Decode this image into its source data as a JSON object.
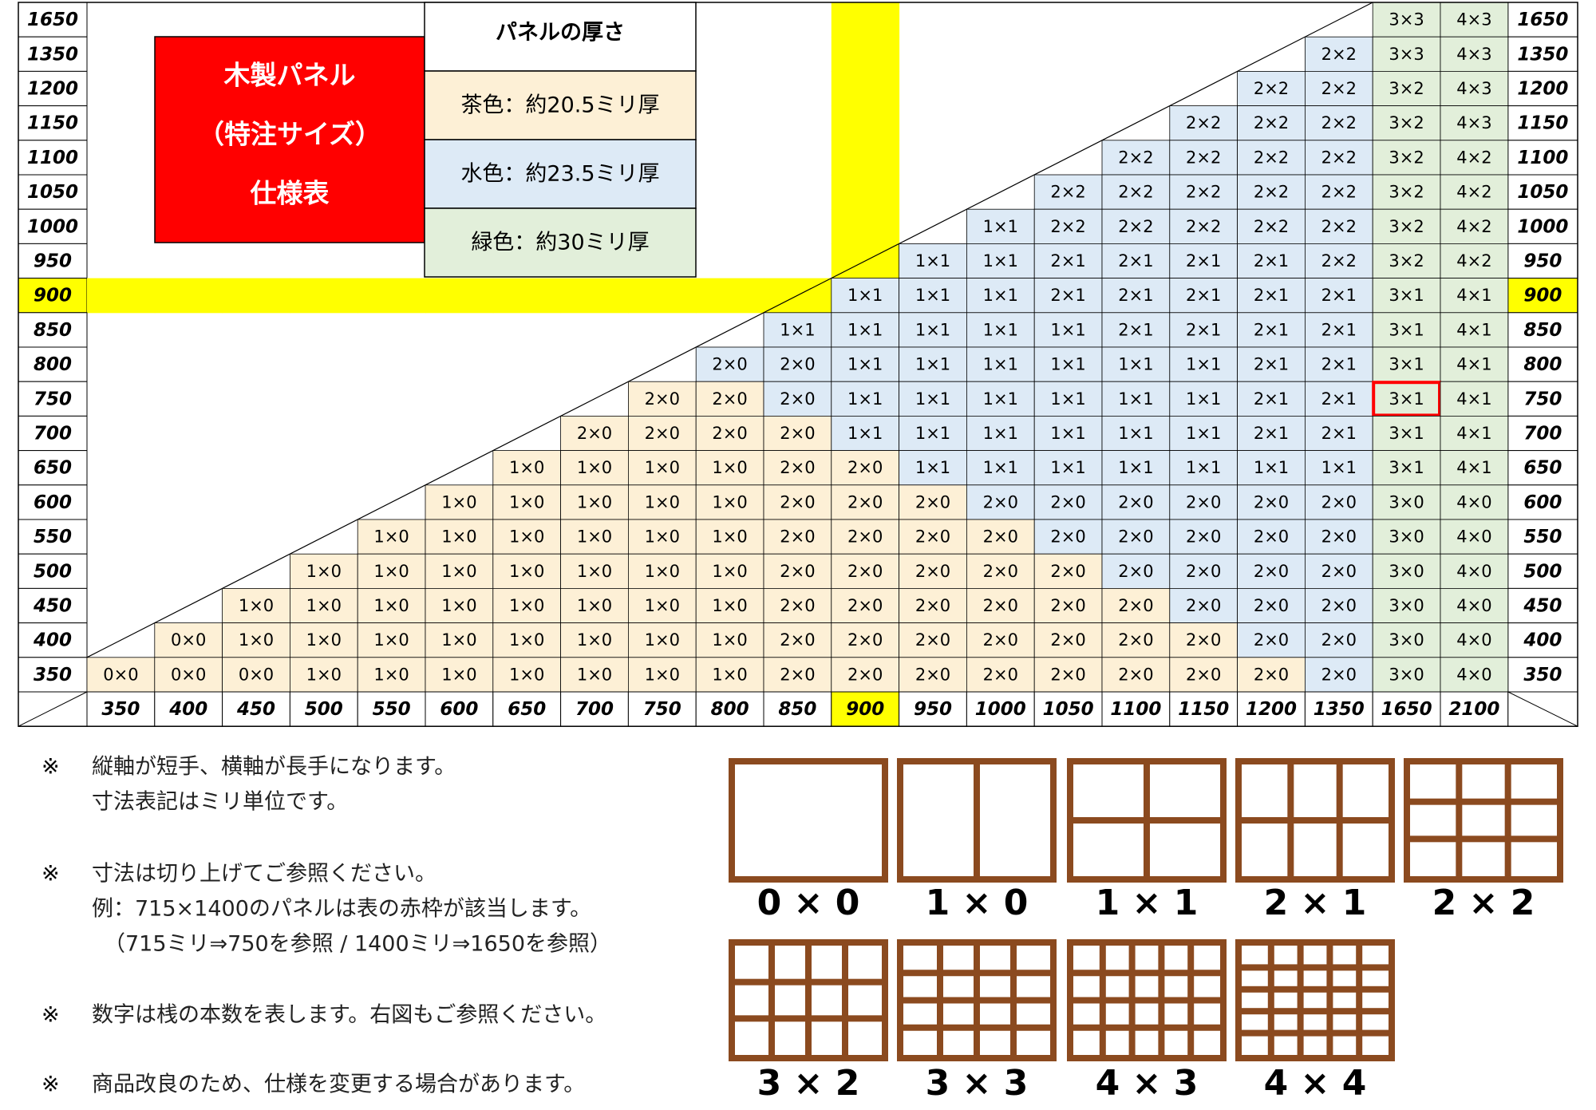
{
  "title_box": [
    "木製パネル",
    "（特注サイズ）",
    "仕様表"
  ],
  "legend": {
    "title": "パネルの厚さ",
    "items": [
      {
        "label": "茶色：約20.5ミリ厚",
        "color": "#fdf0d6"
      },
      {
        "label": "水色：約23.5ミリ厚",
        "color": "#ddeaf6"
      },
      {
        "label": "緑色：約30ミリ厚",
        "color": "#e2efda"
      }
    ]
  },
  "table": {
    "highlight": "900",
    "highlight_color": "#ffff00",
    "frame": {
      "row": "750",
      "column": "1650",
      "color": "#ff0000"
    },
    "columns": [
      "350",
      "400",
      "450",
      "500",
      "550",
      "600",
      "650",
      "700",
      "750",
      "800",
      "850",
      "900",
      "950",
      "1000",
      "1050",
      "1100",
      "1150",
      "1200",
      "1350",
      "1650",
      "2100"
    ],
    "rows": [
      {
        "label": "1650",
        "cells": [
          null,
          null,
          null,
          null,
          null,
          null,
          null,
          null,
          null,
          null,
          null,
          null,
          null,
          null,
          null,
          null,
          null,
          null,
          null,
          "3×3",
          "4×3"
        ],
        "colors": [
          null,
          null,
          null,
          null,
          null,
          null,
          null,
          null,
          null,
          null,
          null,
          null,
          null,
          null,
          null,
          null,
          null,
          null,
          null,
          "#e2efda",
          "#e2efda"
        ]
      },
      {
        "label": "1350",
        "cells": [
          null,
          null,
          null,
          null,
          null,
          null,
          null,
          null,
          null,
          null,
          null,
          null,
          null,
          null,
          null,
          null,
          null,
          null,
          "2×2",
          "3×3",
          "4×3"
        ],
        "colors": [
          null,
          null,
          null,
          null,
          null,
          null,
          null,
          null,
          null,
          null,
          null,
          null,
          null,
          null,
          null,
          null,
          null,
          null,
          "#ddeaf6",
          "#e2efda",
          "#e2efda"
        ]
      },
      {
        "label": "1200",
        "cells": [
          null,
          null,
          null,
          null,
          null,
          null,
          null,
          null,
          null,
          null,
          null,
          null,
          null,
          null,
          null,
          null,
          null,
          "2×2",
          "2×2",
          "3×2",
          "4×3"
        ],
        "colors": [
          null,
          null,
          null,
          null,
          null,
          null,
          null,
          null,
          null,
          null,
          null,
          null,
          null,
          null,
          null,
          null,
          null,
          "#ddeaf6",
          "#ddeaf6",
          "#e2efda",
          "#e2efda"
        ]
      },
      {
        "label": "1150",
        "cells": [
          null,
          null,
          null,
          null,
          null,
          null,
          null,
          null,
          null,
          null,
          null,
          null,
          null,
          null,
          null,
          null,
          "2×2",
          "2×2",
          "2×2",
          "3×2",
          "4×3"
        ],
        "colors": [
          null,
          null,
          null,
          null,
          null,
          null,
          null,
          null,
          null,
          null,
          null,
          null,
          null,
          null,
          null,
          null,
          "#ddeaf6",
          "#ddeaf6",
          "#ddeaf6",
          "#e2efda",
          "#e2efda"
        ]
      },
      {
        "label": "1100",
        "cells": [
          null,
          null,
          null,
          null,
          null,
          null,
          null,
          null,
          null,
          null,
          null,
          null,
          null,
          null,
          null,
          "2×2",
          "2×2",
          "2×2",
          "2×2",
          "3×2",
          "4×2"
        ],
        "colors": [
          null,
          null,
          null,
          null,
          null,
          null,
          null,
          null,
          null,
          null,
          null,
          null,
          null,
          null,
          null,
          "#ddeaf6",
          "#ddeaf6",
          "#ddeaf6",
          "#ddeaf6",
          "#e2efda",
          "#e2efda"
        ]
      },
      {
        "label": "1050",
        "cells": [
          null,
          null,
          null,
          null,
          null,
          null,
          null,
          null,
          null,
          null,
          null,
          null,
          null,
          null,
          "2×2",
          "2×2",
          "2×2",
          "2×2",
          "2×2",
          "3×2",
          "4×2"
        ],
        "colors": [
          null,
          null,
          null,
          null,
          null,
          null,
          null,
          null,
          null,
          null,
          null,
          null,
          null,
          null,
          "#ddeaf6",
          "#ddeaf6",
          "#ddeaf6",
          "#ddeaf6",
          "#ddeaf6",
          "#e2efda",
          "#e2efda"
        ]
      },
      {
        "label": "1000",
        "cells": [
          null,
          null,
          null,
          null,
          null,
          null,
          null,
          null,
          null,
          null,
          null,
          null,
          null,
          "1×1",
          "2×2",
          "2×2",
          "2×2",
          "2×2",
          "2×2",
          "3×2",
          "4×2"
        ],
        "colors": [
          null,
          null,
          null,
          null,
          null,
          null,
          null,
          null,
          null,
          null,
          null,
          null,
          null,
          "#ddeaf6",
          "#ddeaf6",
          "#ddeaf6",
          "#ddeaf6",
          "#ddeaf6",
          "#ddeaf6",
          "#e2efda",
          "#e2efda"
        ]
      },
      {
        "label": "950",
        "cells": [
          null,
          null,
          null,
          null,
          null,
          null,
          null,
          null,
          null,
          null,
          null,
          null,
          "1×1",
          "1×1",
          "2×1",
          "2×1",
          "2×1",
          "2×1",
          "2×2",
          "3×2",
          "4×2"
        ],
        "colors": [
          null,
          null,
          null,
          null,
          null,
          null,
          null,
          null,
          null,
          null,
          null,
          null,
          "#ddeaf6",
          "#ddeaf6",
          "#ddeaf6",
          "#ddeaf6",
          "#ddeaf6",
          "#ddeaf6",
          "#ddeaf6",
          "#e2efda",
          "#e2efda"
        ]
      },
      {
        "label": "900",
        "cells": [
          null,
          null,
          null,
          null,
          null,
          null,
          null,
          null,
          null,
          null,
          null,
          "1×1",
          "1×1",
          "1×1",
          "2×1",
          "2×1",
          "2×1",
          "2×1",
          "2×1",
          "3×1",
          "4×1"
        ],
        "colors": [
          null,
          null,
          null,
          null,
          null,
          null,
          null,
          null,
          null,
          null,
          null,
          "#ddeaf6",
          "#ddeaf6",
          "#ddeaf6",
          "#ddeaf6",
          "#ddeaf6",
          "#ddeaf6",
          "#ddeaf6",
          "#ddeaf6",
          "#e2efda",
          "#e2efda"
        ]
      },
      {
        "label": "850",
        "cells": [
          null,
          null,
          null,
          null,
          null,
          null,
          null,
          null,
          null,
          null,
          "1×1",
          "1×1",
          "1×1",
          "1×1",
          "1×1",
          "2×1",
          "2×1",
          "2×1",
          "2×1",
          "3×1",
          "4×1"
        ],
        "colors": [
          null,
          null,
          null,
          null,
          null,
          null,
          null,
          null,
          null,
          null,
          "#ddeaf6",
          "#ddeaf6",
          "#ddeaf6",
          "#ddeaf6",
          "#ddeaf6",
          "#ddeaf6",
          "#ddeaf6",
          "#ddeaf6",
          "#ddeaf6",
          "#e2efda",
          "#e2efda"
        ]
      },
      {
        "label": "800",
        "cells": [
          null,
          null,
          null,
          null,
          null,
          null,
          null,
          null,
          null,
          "2×0",
          "2×0",
          "1×1",
          "1×1",
          "1×1",
          "1×1",
          "1×1",
          "1×1",
          "2×1",
          "2×1",
          "3×1",
          "4×1"
        ],
        "colors": [
          null,
          null,
          null,
          null,
          null,
          null,
          null,
          null,
          null,
          "#ddeaf6",
          "#ddeaf6",
          "#ddeaf6",
          "#ddeaf6",
          "#ddeaf6",
          "#ddeaf6",
          "#ddeaf6",
          "#ddeaf6",
          "#ddeaf6",
          "#ddeaf6",
          "#e2efda",
          "#e2efda"
        ]
      },
      {
        "label": "750",
        "cells": [
          null,
          null,
          null,
          null,
          null,
          null,
          null,
          null,
          "2×0",
          "2×0",
          "2×0",
          "1×1",
          "1×1",
          "1×1",
          "1×1",
          "1×1",
          "1×1",
          "2×1",
          "2×1",
          "3×1",
          "4×1"
        ],
        "colors": [
          null,
          null,
          null,
          null,
          null,
          null,
          null,
          null,
          "#fdf0d6",
          "#fdf0d6",
          "#ddeaf6",
          "#ddeaf6",
          "#ddeaf6",
          "#ddeaf6",
          "#ddeaf6",
          "#ddeaf6",
          "#ddeaf6",
          "#ddeaf6",
          "#ddeaf6",
          "#e2efda",
          "#e2efda"
        ]
      },
      {
        "label": "700",
        "cells": [
          null,
          null,
          null,
          null,
          null,
          null,
          null,
          "2×0",
          "2×0",
          "2×0",
          "2×0",
          "1×1",
          "1×1",
          "1×1",
          "1×1",
          "1×1",
          "1×1",
          "2×1",
          "2×1",
          "3×1",
          "4×1"
        ],
        "colors": [
          null,
          null,
          null,
          null,
          null,
          null,
          null,
          "#fdf0d6",
          "#fdf0d6",
          "#fdf0d6",
          "#fdf0d6",
          "#ddeaf6",
          "#ddeaf6",
          "#ddeaf6",
          "#ddeaf6",
          "#ddeaf6",
          "#ddeaf6",
          "#ddeaf6",
          "#ddeaf6",
          "#e2efda",
          "#e2efda"
        ]
      },
      {
        "label": "650",
        "cells": [
          null,
          null,
          null,
          null,
          null,
          null,
          "1×0",
          "1×0",
          "1×0",
          "1×0",
          "2×0",
          "2×0",
          "1×1",
          "1×1",
          "1×1",
          "1×1",
          "1×1",
          "1×1",
          "1×1",
          "3×1",
          "4×1"
        ],
        "colors": [
          null,
          null,
          null,
          null,
          null,
          null,
          "#fdf0d6",
          "#fdf0d6",
          "#fdf0d6",
          "#fdf0d6",
          "#fdf0d6",
          "#fdf0d6",
          "#ddeaf6",
          "#ddeaf6",
          "#ddeaf6",
          "#ddeaf6",
          "#ddeaf6",
          "#ddeaf6",
          "#ddeaf6",
          "#e2efda",
          "#e2efda"
        ]
      },
      {
        "label": "600",
        "cells": [
          null,
          null,
          null,
          null,
          null,
          "1×0",
          "1×0",
          "1×0",
          "1×0",
          "1×0",
          "2×0",
          "2×0",
          "2×0",
          "2×0",
          "2×0",
          "2×0",
          "2×0",
          "2×0",
          "2×0",
          "3×0",
          "4×0"
        ],
        "colors": [
          null,
          null,
          null,
          null,
          null,
          "#fdf0d6",
          "#fdf0d6",
          "#fdf0d6",
          "#fdf0d6",
          "#fdf0d6",
          "#fdf0d6",
          "#fdf0d6",
          "#fdf0d6",
          "#ddeaf6",
          "#ddeaf6",
          "#ddeaf6",
          "#ddeaf6",
          "#ddeaf6",
          "#ddeaf6",
          "#e2efda",
          "#e2efda"
        ]
      },
      {
        "label": "550",
        "cells": [
          null,
          null,
          null,
          null,
          "1×0",
          "1×0",
          "1×0",
          "1×0",
          "1×0",
          "1×0",
          "2×0",
          "2×0",
          "2×0",
          "2×0",
          "2×0",
          "2×0",
          "2×0",
          "2×0",
          "2×0",
          "3×0",
          "4×0"
        ],
        "colors": [
          null,
          null,
          null,
          null,
          "#fdf0d6",
          "#fdf0d6",
          "#fdf0d6",
          "#fdf0d6",
          "#fdf0d6",
          "#fdf0d6",
          "#fdf0d6",
          "#fdf0d6",
          "#fdf0d6",
          "#fdf0d6",
          "#ddeaf6",
          "#ddeaf6",
          "#ddeaf6",
          "#ddeaf6",
          "#ddeaf6",
          "#e2efda",
          "#e2efda"
        ]
      },
      {
        "label": "500",
        "cells": [
          null,
          null,
          null,
          "1×0",
          "1×0",
          "1×0",
          "1×0",
          "1×0",
          "1×0",
          "1×0",
          "2×0",
          "2×0",
          "2×0",
          "2×0",
          "2×0",
          "2×0",
          "2×0",
          "2×0",
          "2×0",
          "3×0",
          "4×0"
        ],
        "colors": [
          null,
          null,
          null,
          "#fdf0d6",
          "#fdf0d6",
          "#fdf0d6",
          "#fdf0d6",
          "#fdf0d6",
          "#fdf0d6",
          "#fdf0d6",
          "#fdf0d6",
          "#fdf0d6",
          "#fdf0d6",
          "#fdf0d6",
          "#fdf0d6",
          "#ddeaf6",
          "#ddeaf6",
          "#ddeaf6",
          "#ddeaf6",
          "#e2efda",
          "#e2efda"
        ]
      },
      {
        "label": "450",
        "cells": [
          null,
          null,
          "1×0",
          "1×0",
          "1×0",
          "1×0",
          "1×0",
          "1×0",
          "1×0",
          "1×0",
          "2×0",
          "2×0",
          "2×0",
          "2×0",
          "2×0",
          "2×0",
          "2×0",
          "2×0",
          "2×0",
          "3×0",
          "4×0"
        ],
        "colors": [
          null,
          null,
          "#fdf0d6",
          "#fdf0d6",
          "#fdf0d6",
          "#fdf0d6",
          "#fdf0d6",
          "#fdf0d6",
          "#fdf0d6",
          "#fdf0d6",
          "#fdf0d6",
          "#fdf0d6",
          "#fdf0d6",
          "#fdf0d6",
          "#fdf0d6",
          "#fdf0d6",
          "#ddeaf6",
          "#ddeaf6",
          "#ddeaf6",
          "#e2efda",
          "#e2efda"
        ]
      },
      {
        "label": "400",
        "cells": [
          null,
          "0×0",
          "1×0",
          "1×0",
          "1×0",
          "1×0",
          "1×0",
          "1×0",
          "1×0",
          "1×0",
          "2×0",
          "2×0",
          "2×0",
          "2×0",
          "2×0",
          "2×0",
          "2×0",
          "2×0",
          "2×0",
          "3×0",
          "4×0"
        ],
        "colors": [
          null,
          "#fdf0d6",
          "#fdf0d6",
          "#fdf0d6",
          "#fdf0d6",
          "#fdf0d6",
          "#fdf0d6",
          "#fdf0d6",
          "#fdf0d6",
          "#fdf0d6",
          "#fdf0d6",
          "#fdf0d6",
          "#fdf0d6",
          "#fdf0d6",
          "#fdf0d6",
          "#fdf0d6",
          "#fdf0d6",
          "#ddeaf6",
          "#ddeaf6",
          "#e2efda",
          "#e2efda"
        ]
      },
      {
        "label": "350",
        "cells": [
          "0×0",
          "0×0",
          "0×0",
          "1×0",
          "1×0",
          "1×0",
          "1×0",
          "1×0",
          "1×0",
          "1×0",
          "2×0",
          "2×0",
          "2×0",
          "2×0",
          "2×0",
          "2×0",
          "2×0",
          "2×0",
          "2×0",
          "3×0",
          "4×0"
        ],
        "colors": [
          "#fdf0d6",
          "#fdf0d6",
          "#fdf0d6",
          "#fdf0d6",
          "#fdf0d6",
          "#fdf0d6",
          "#fdf0d6",
          "#fdf0d6",
          "#fdf0d6",
          "#fdf0d6",
          "#fdf0d6",
          "#fdf0d6",
          "#fdf0d6",
          "#fdf0d6",
          "#fdf0d6",
          "#fdf0d6",
          "#fdf0d6",
          "#fdf0d6",
          "#ddeaf6",
          "#e2efda",
          "#e2efda"
        ]
      }
    ]
  },
  "notes": {
    "marker": "※",
    "items": [
      [
        "縦軸が短手、横軸が長手になります。",
        "寸法表記はミリ単位です。"
      ],
      [
        "寸法は切り上げてご参照ください。",
        "例：715×1400のパネルは表の赤枠が該当します。",
        "（715ミリ⇒750を参照 / 1400ミリ⇒1650を参照）"
      ],
      [
        "数字は桟の本数を表します。右図もご参照ください。"
      ],
      [
        "商品改良のため、仕様を変更する場合があります。"
      ]
    ]
  },
  "diagrams": {
    "color": "#8b4a1f",
    "labels": [
      "0 × 0",
      "1 × 0",
      "1 × 1",
      "2 × 1",
      "2 × 2",
      "3 × 2",
      "3 × 3",
      "4 × 3",
      "4 × 4"
    ]
  }
}
